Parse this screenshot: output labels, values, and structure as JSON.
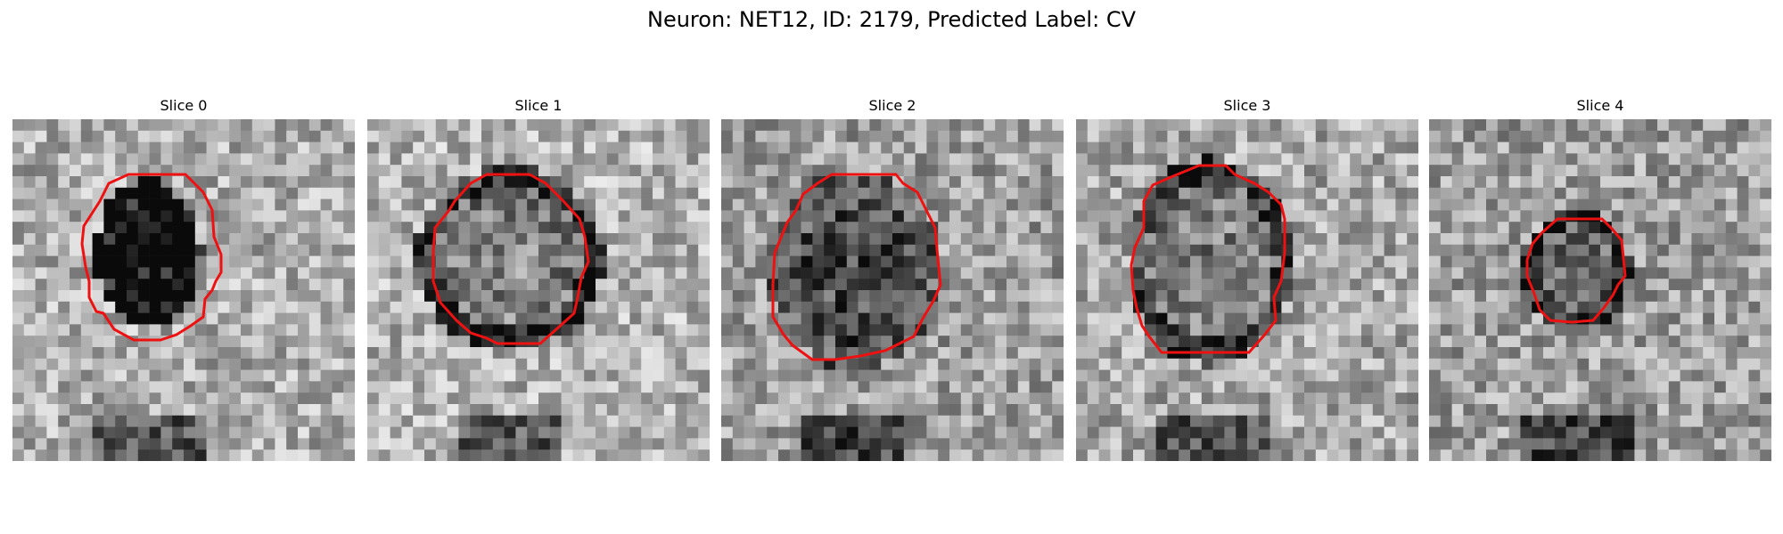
{
  "title": "Neuron: NET12, ID: 2179, Predicted Label: CV",
  "slices": [
    {
      "label": "Slice 0"
    },
    {
      "label": "Slice 1"
    },
    {
      "label": "Slice 2"
    },
    {
      "label": "Slice 3"
    },
    {
      "label": "Slice 4"
    }
  ],
  "colors": {
    "contour": "#ee1111",
    "background": "#ffffff"
  }
}
